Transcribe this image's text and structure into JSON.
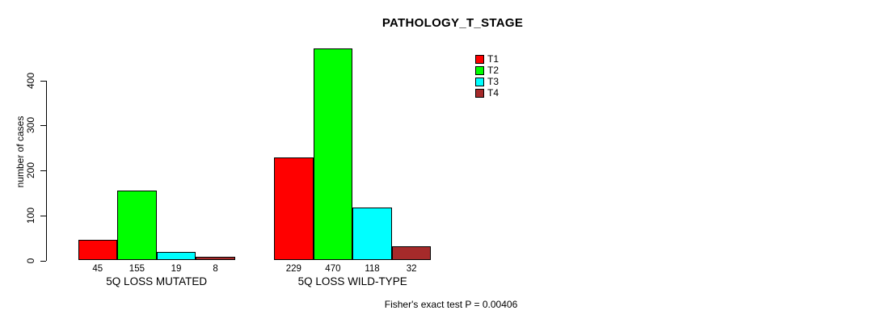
{
  "figure": {
    "title": "PATHOLOGY_T_STAGE",
    "annotation": "Fisher's exact test P = 0.00406"
  },
  "chart_data": {
    "type": "bar",
    "title": "PATHOLOGY_T_STAGE",
    "xlabel": "",
    "ylabel": "number of cases",
    "categories": [
      "5Q LOSS MUTATED",
      "5Q LOSS WILD-TYPE"
    ],
    "series": [
      {
        "name": "T1",
        "color": "#ff0000",
        "values": [
          45,
          229
        ]
      },
      {
        "name": "T2",
        "color": "#00ff00",
        "values": [
          155,
          470
        ]
      },
      {
        "name": "T3",
        "color": "#00ffff",
        "values": [
          19,
          118
        ]
      },
      {
        "name": "T4",
        "color": "#a52a2a",
        "values": [
          8,
          32
        ]
      }
    ],
    "bar_value_labels": [
      [
        45,
        155,
        19,
        8
      ],
      [
        229,
        470,
        118,
        32
      ]
    ],
    "yticks": [
      0,
      100,
      200,
      300,
      400
    ],
    "ylim": [
      0,
      470
    ],
    "grid": false,
    "legend_position": "top-right",
    "legend_entries": [
      "T1",
      "T2",
      "T3",
      "T4"
    ],
    "annotation": "Fisher's exact test P = 0.00406"
  }
}
